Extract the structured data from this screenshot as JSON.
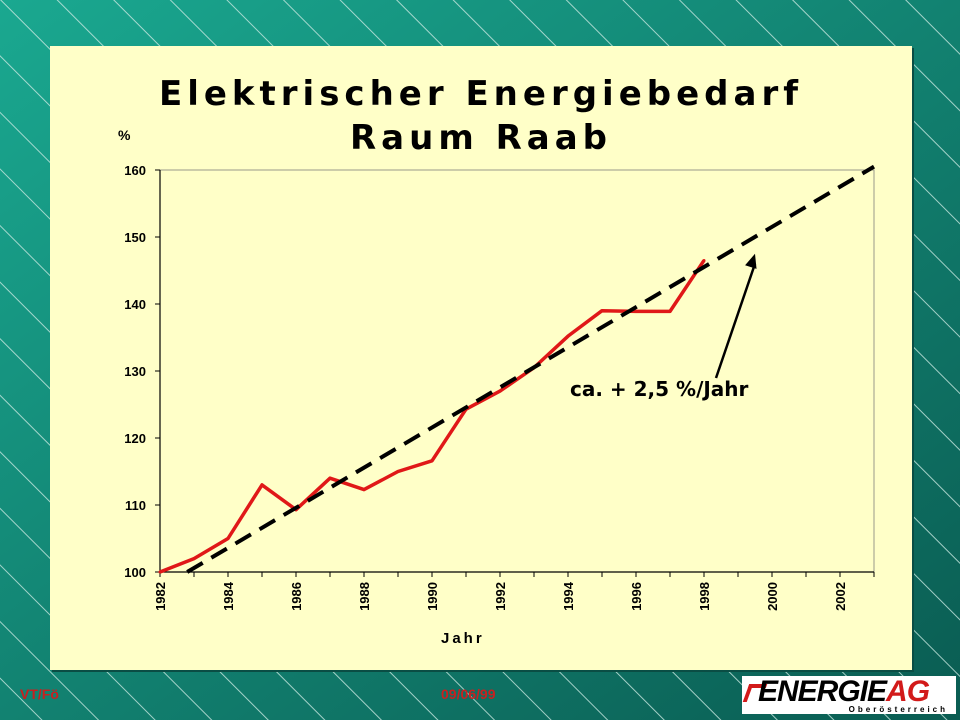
{
  "footer": {
    "author": "VT/Fö",
    "date": "09/06/99",
    "logo_main": "ENERGIE",
    "logo_accent": "AG",
    "logo_sub": "Oberösterreich"
  },
  "colors": {
    "background": "#0e6f62",
    "panel": "#ffffc8",
    "series": "#e01818",
    "trend": "#000000"
  },
  "chart_data": {
    "type": "line",
    "title_line1": "Elektrischer Energiebedarf",
    "title_line2": "Raum Raab",
    "ylabel": "%",
    "xlabel": "Jahr",
    "xlim": [
      1982,
      2003
    ],
    "ylim": [
      100,
      160
    ],
    "x_ticks": [
      "1982",
      "1984",
      "1986",
      "1988",
      "1990",
      "1992",
      "1994",
      "1996",
      "1998",
      "2000",
      "2002"
    ],
    "y_ticks": [
      "100",
      "110",
      "120",
      "130",
      "140",
      "150",
      "160"
    ],
    "grid": false,
    "series": [
      {
        "style": "solid",
        "x": [
          1982,
          1983,
          1984,
          1985,
          1986,
          1987,
          1988,
          1989,
          1990,
          1991,
          1992,
          1993,
          1994,
          1995,
          1996,
          1997,
          1998
        ],
        "y": [
          100,
          102,
          105,
          113,
          109.3,
          114,
          112.3,
          115,
          116.6,
          124.3,
          127,
          130.5,
          135.2,
          139,
          138.9,
          138.9,
          146.5
        ]
      },
      {
        "style": "dashed",
        "x": [
          1982.8,
          2003
        ],
        "y": [
          100,
          160.5
        ]
      }
    ],
    "annotation": {
      "text": "ca. + 2,5 %/Jahr",
      "arrow_target": [
        1999.5,
        147.5
      ]
    }
  }
}
